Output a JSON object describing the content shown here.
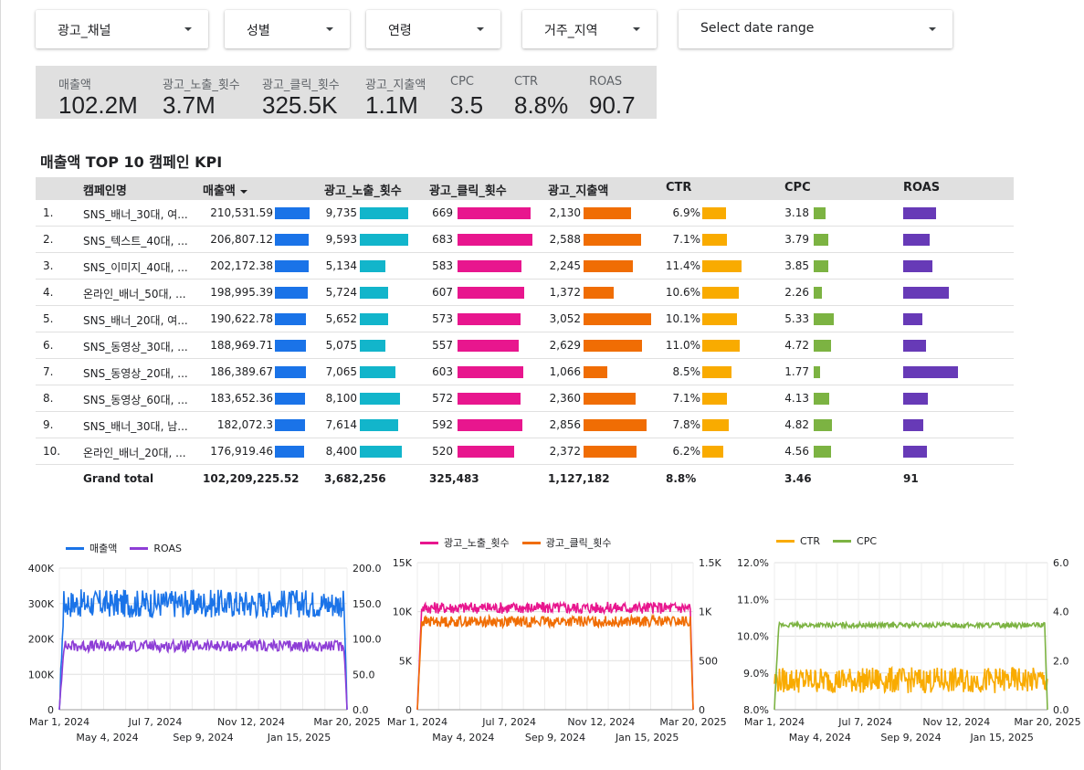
{
  "filters": [
    "광고_채널",
    "성별",
    "연령",
    "거주_지역",
    "Select date range"
  ],
  "scorecards": [
    {
      "label": "매출액",
      "value": "102.2M"
    },
    {
      "label": "광고_노출_횟수",
      "value": "3.7M"
    },
    {
      "label": "광고_클릭_횟수",
      "value": "325.5K"
    },
    {
      "label": "광고_지출액",
      "value": "1.1M"
    },
    {
      "label": "CPC",
      "value": "3.5"
    },
    {
      "label": "CTR",
      "value": "8.8%"
    },
    {
      "label": "ROAS",
      "value": "90.7"
    }
  ],
  "table": {
    "title": "매출액 TOP 10 캠페인 KPI",
    "headers": [
      "캠페인명",
      "매출액",
      "광고_노출_횟수",
      "광고_클릭_횟수",
      "광고_지출액",
      "CTR",
      "CPC",
      "ROAS"
    ],
    "rows": [
      {
        "rank": "1.",
        "name": "SNS_배너_30대, 여...",
        "revenue": "210,531.59",
        "imp": "9,735",
        "clicks": "669",
        "spend": "2,130",
        "ctr": "6.9%",
        "cpc": "3.18",
        "roas_v": 104,
        "revenue_v": 210531.59,
        "imp_v": 9735,
        "clicks_v": 669,
        "spend_v": 2130,
        "ctr_v": 6.9,
        "cpc_v": 3.18
      },
      {
        "rank": "2.",
        "name": "SNS_텍스트_40대, ...",
        "revenue": "206,807.12",
        "imp": "9,593",
        "clicks": "683",
        "spend": "2,588",
        "ctr": "7.1%",
        "cpc": "3.79",
        "roas_v": 84,
        "revenue_v": 206807.12,
        "imp_v": 9593,
        "clicks_v": 683,
        "spend_v": 2588,
        "ctr_v": 7.1,
        "cpc_v": 3.79
      },
      {
        "rank": "3.",
        "name": "SNS_이미지_40대, ...",
        "revenue": "202,172.38",
        "imp": "5,134",
        "clicks": "583",
        "spend": "2,245",
        "ctr": "11.4%",
        "cpc": "3.85",
        "roas_v": 92,
        "revenue_v": 202172.38,
        "imp_v": 5134,
        "clicks_v": 583,
        "spend_v": 2245,
        "ctr_v": 11.4,
        "cpc_v": 3.85
      },
      {
        "rank": "4.",
        "name": "온라인_배너_50대, ...",
        "revenue": "198,995.39",
        "imp": "5,724",
        "clicks": "607",
        "spend": "1,372",
        "ctr": "10.6%",
        "cpc": "2.26",
        "roas_v": 145,
        "revenue_v": 198995.39,
        "imp_v": 5724,
        "clicks_v": 607,
        "spend_v": 1372,
        "ctr_v": 10.6,
        "cpc_v": 2.26
      },
      {
        "rank": "5.",
        "name": "SNS_배너_20대, 여...",
        "revenue": "190,622.78",
        "imp": "5,652",
        "clicks": "573",
        "spend": "3,052",
        "ctr": "10.1%",
        "cpc": "5.33",
        "roas_v": 62,
        "revenue_v": 190622.78,
        "imp_v": 5652,
        "clicks_v": 573,
        "spend_v": 3052,
        "ctr_v": 10.1,
        "cpc_v": 5.33
      },
      {
        "rank": "6.",
        "name": "SNS_동영상_30대, ...",
        "revenue": "188,969.71",
        "imp": "5,075",
        "clicks": "557",
        "spend": "2,629",
        "ctr": "11.0%",
        "cpc": "4.72",
        "roas_v": 72,
        "revenue_v": 188969.71,
        "imp_v": 5075,
        "clicks_v": 557,
        "spend_v": 2629,
        "ctr_v": 11.0,
        "cpc_v": 4.72
      },
      {
        "rank": "7.",
        "name": "SNS_동영상_20대, ...",
        "revenue": "186,389.67",
        "imp": "7,065",
        "clicks": "603",
        "spend": "1,066",
        "ctr": "8.5%",
        "cpc": "1.77",
        "roas_v": 175,
        "revenue_v": 186389.67,
        "imp_v": 7065,
        "clicks_v": 603,
        "spend_v": 1066,
        "ctr_v": 8.5,
        "cpc_v": 1.77
      },
      {
        "rank": "8.",
        "name": "SNS_동영상_60대, ...",
        "revenue": "183,652.36",
        "imp": "8,100",
        "clicks": "572",
        "spend": "2,360",
        "ctr": "7.1%",
        "cpc": "4.13",
        "roas_v": 78,
        "revenue_v": 183652.36,
        "imp_v": 8100,
        "clicks_v": 572,
        "spend_v": 2360,
        "ctr_v": 7.1,
        "cpc_v": 4.13
      },
      {
        "rank": "9.",
        "name": "SNS_배너_30대, 남...",
        "revenue": "182,072.3",
        "imp": "7,614",
        "clicks": "592",
        "spend": "2,856",
        "ctr": "7.8%",
        "cpc": "4.82",
        "roas_v": 64,
        "revenue_v": 182072.3,
        "imp_v": 7614,
        "clicks_v": 592,
        "spend_v": 2856,
        "ctr_v": 7.8,
        "cpc_v": 4.82
      },
      {
        "rank": "10.",
        "name": "온라인_배너_20대, ...",
        "revenue": "176,919.46",
        "imp": "8,400",
        "clicks": "520",
        "spend": "2,372",
        "ctr": "6.2%",
        "cpc": "4.56",
        "roas_v": 75,
        "revenue_v": 176919.46,
        "imp_v": 8400,
        "clicks_v": 520,
        "spend_v": 2372,
        "ctr_v": 6.2,
        "cpc_v": 4.56
      }
    ],
    "total": {
      "label": "Grand total",
      "revenue": "102,209,225.52",
      "imp": "3,682,256",
      "clicks": "325,483",
      "spend": "1,127,182",
      "ctr": "8.8%",
      "cpc": "3.46",
      "roas": "91"
    },
    "bar_colors": {
      "revenue": "#1a73e8",
      "imp": "#12b5cb",
      "clicks": "#e8168e",
      "spend": "#f06d04",
      "ctr": "#f9ab00",
      "cpc": "#7cb342",
      "roas": "#673ab7"
    }
  },
  "chart_data": [
    {
      "type": "line",
      "series": [
        {
          "name": "매출액",
          "color": "#1a73e8",
          "axis": "left",
          "level": 300000,
          "noise": 40000
        },
        {
          "name": "ROAS",
          "color": "#8e3ed6",
          "axis": "right",
          "level": 90,
          "noise": 8
        }
      ],
      "y_left_ticks": [
        "0",
        "100K",
        "200K",
        "300K",
        "400K"
      ],
      "y_left_range": [
        0,
        400000
      ],
      "y_right_ticks": [
        "0.0",
        "50.0",
        "100.0",
        "150.0",
        "200.0"
      ],
      "y_right_range": [
        0,
        200
      ],
      "x_ticks_top": [
        "Mar 1, 2024",
        "Jul 7, 2024",
        "Nov 12, 2024",
        "Mar 20, 2025"
      ],
      "x_ticks_bottom": [
        "May 4, 2024",
        "Sep 9, 2024",
        "Jan 15, 2025"
      ],
      "x_range": [
        "2024-03-01",
        "2025-03-20"
      ]
    },
    {
      "type": "line",
      "series": [
        {
          "name": "광고_노출_횟수",
          "color": "#e8168e",
          "axis": "left",
          "level": 10400,
          "noise": 600
        },
        {
          "name": "광고_클릭_횟수",
          "color": "#f06d04",
          "axis": "right",
          "level": 900,
          "noise": 55
        }
      ],
      "y_left_ticks": [
        "0",
        "5K",
        "10K",
        "15K"
      ],
      "y_left_range": [
        0,
        15000
      ],
      "y_right_ticks": [
        "0",
        "500",
        "1K",
        "1.5K"
      ],
      "y_right_range": [
        0,
        1500
      ],
      "x_ticks_top": [
        "Mar 1, 2024",
        "Jul 7, 2024",
        "Nov 12, 2024",
        "Mar 20, 2025"
      ],
      "x_ticks_bottom": [
        "May 4, 2024",
        "Sep 9, 2024",
        "Jan 15, 2025"
      ],
      "x_range": [
        "2024-03-01",
        "2025-03-20"
      ]
    },
    {
      "type": "line",
      "series": [
        {
          "name": "CTR",
          "color": "#f9ab00",
          "axis": "left",
          "level": 8.8,
          "noise": 0.35
        },
        {
          "name": "CPC",
          "color": "#7cb342",
          "axis": "right",
          "level": 3.45,
          "noise": 0.1
        }
      ],
      "y_left_ticks": [
        "8.0%",
        "9.0%",
        "10.0%",
        "11.0%",
        "12.0%"
      ],
      "y_left_range": [
        8,
        12
      ],
      "y_right_ticks": [
        "0.0",
        "2.0",
        "4.0",
        "6.0"
      ],
      "y_right_range": [
        0,
        6
      ],
      "x_ticks_top": [
        "Mar 1, 2024",
        "Jul 7, 2024",
        "Nov 12, 2024",
        "Mar 20, 2025"
      ],
      "x_ticks_bottom": [
        "May 4, 2024",
        "Sep 9, 2024",
        "Jan 15, 2025"
      ],
      "x_range": [
        "2024-03-01",
        "2025-03-20"
      ]
    }
  ]
}
